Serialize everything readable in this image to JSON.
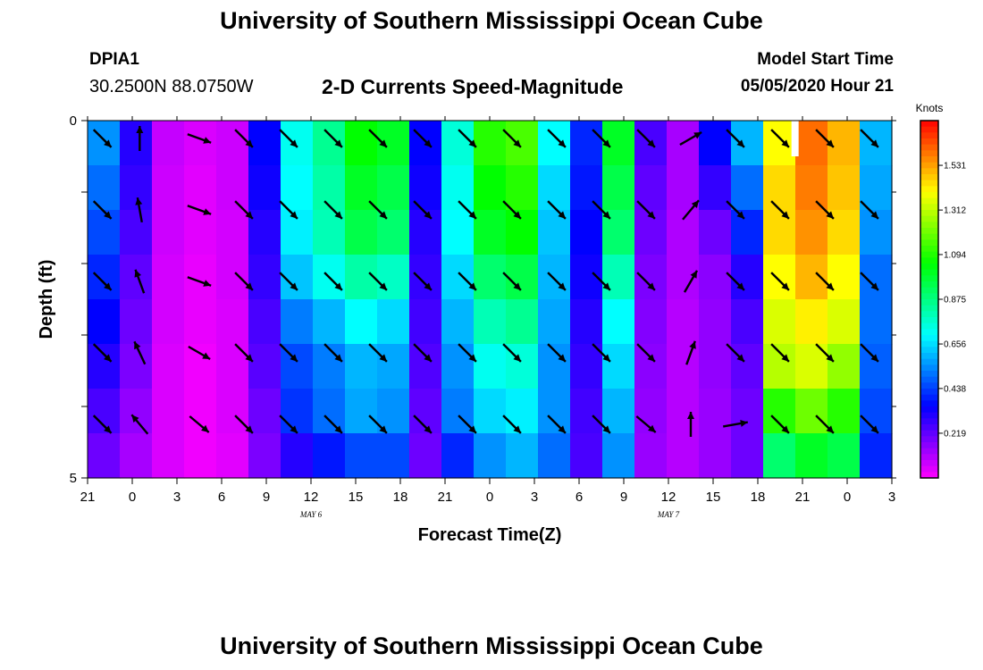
{
  "page": {
    "title_top": "University of Southern Mississippi Ocean Cube",
    "title_bottom": "University of Southern Mississippi Ocean Cube",
    "station_id": "DPIA1",
    "station_coords": "30.2500N 88.0750W",
    "subtitle": "2-D Currents Speed-Magnitude",
    "model_start_label": "Model Start Time",
    "model_start_value": "05/05/2020 Hour 21"
  },
  "chart_data": {
    "type": "heatmap",
    "title": "2-D Currents Speed-Magnitude",
    "xlabel": "Forecast Time(Z)",
    "ylabel": "Depth (ft)",
    "x_ticks": [
      "21",
      "0",
      "3",
      "6",
      "9",
      "12",
      "15",
      "18",
      "21",
      "0",
      "3",
      "6",
      "9",
      "12",
      "15",
      "18",
      "21",
      "0",
      "3"
    ],
    "x_range_hours": [
      0,
      54
    ],
    "date_labels": [
      {
        "text": "MAY 6",
        "hour": 15
      },
      {
        "text": "MAY 7",
        "hour": 39
      }
    ],
    "y_ticks": [
      "0",
      "5"
    ],
    "y_range": [
      0,
      5
    ],
    "colorbar": {
      "label": "Knots",
      "ticks": [
        0.219,
        0.438,
        0.656,
        0.875,
        1.094,
        1.312,
        1.531
      ],
      "tick_labels": [
        "0.219",
        "0.438",
        "0.656",
        "0.875",
        "1.094",
        "1.312",
        "1.531"
      ],
      "range": [
        0,
        1.75
      ]
    },
    "depth_layers": 8,
    "column_speeds": [
      [
        0.55,
        0.5,
        0.45,
        0.4,
        0.35,
        0.3,
        0.25,
        0.2
      ],
      [
        0.3,
        0.28,
        0.25,
        0.22,
        0.2,
        0.18,
        0.15,
        0.12
      ],
      [
        0.08,
        0.07,
        0.07,
        0.06,
        0.06,
        0.05,
        0.05,
        0.05
      ],
      [
        0.05,
        0.04,
        0.04,
        0.03,
        0.03,
        0.02,
        0.02,
        0.02
      ],
      [
        0.07,
        0.07,
        0.06,
        0.06,
        0.05,
        0.05,
        0.05,
        0.04
      ],
      [
        0.35,
        0.33,
        0.3,
        0.28,
        0.25,
        0.23,
        0.2,
        0.18
      ],
      [
        0.72,
        0.7,
        0.68,
        0.62,
        0.52,
        0.45,
        0.42,
        0.3
      ],
      [
        0.85,
        0.82,
        0.8,
        0.72,
        0.6,
        0.52,
        0.5,
        0.38
      ],
      [
        1.05,
        1.0,
        0.95,
        0.82,
        0.7,
        0.6,
        0.58,
        0.45
      ],
      [
        1.0,
        0.95,
        0.9,
        0.78,
        0.65,
        0.58,
        0.55,
        0.45
      ],
      [
        0.35,
        0.33,
        0.3,
        0.28,
        0.26,
        0.24,
        0.22,
        0.2
      ],
      [
        0.75,
        0.72,
        0.7,
        0.65,
        0.6,
        0.55,
        0.52,
        0.4
      ],
      [
        1.1,
        1.05,
        1.0,
        0.9,
        0.8,
        0.72,
        0.65,
        0.55
      ],
      [
        1.15,
        1.1,
        1.05,
        0.95,
        0.85,
        0.75,
        0.68,
        0.6
      ],
      [
        0.7,
        0.65,
        0.62,
        0.6,
        0.58,
        0.55,
        0.55,
        0.5
      ],
      [
        0.4,
        0.38,
        0.35,
        0.33,
        0.3,
        0.28,
        0.26,
        0.25
      ],
      [
        1.0,
        0.95,
        0.9,
        0.8,
        0.7,
        0.65,
        0.6,
        0.55
      ],
      [
        0.25,
        0.22,
        0.2,
        0.18,
        0.17,
        0.16,
        0.15,
        0.14
      ],
      [
        0.12,
        0.12,
        0.11,
        0.11,
        0.1,
        0.1,
        0.1,
        0.1
      ],
      [
        0.35,
        0.28,
        0.2,
        0.16,
        0.15,
        0.15,
        0.14,
        0.14
      ],
      [
        0.6,
        0.5,
        0.4,
        0.3,
        0.25,
        0.22,
        0.2,
        0.2
      ],
      [
        1.4,
        1.45,
        1.45,
        1.4,
        1.35,
        1.3,
        1.1,
        0.9
      ],
      [
        1.6,
        1.58,
        1.55,
        1.5,
        1.42,
        1.35,
        1.2,
        1.0
      ],
      [
        1.5,
        1.48,
        1.45,
        1.4,
        1.35,
        1.25,
        1.1,
        0.95
      ],
      [
        0.6,
        0.58,
        0.55,
        0.5,
        0.5,
        0.48,
        0.45,
        0.4
      ]
    ],
    "arrow_hours": [
      1,
      3.5,
      7.5,
      10.5,
      13.5,
      16.5,
      19.5,
      22.5,
      25.5,
      28.5,
      31.5,
      34.5,
      37.5,
      40.5,
      43.5,
      46.5,
      49.5,
      52.5
    ],
    "arrow_depths": [
      0.25,
      1.25,
      2.25,
      3.25,
      4.25
    ],
    "arrow_directions_deg": [
      [
        135,
        135,
        135,
        135,
        135
      ],
      [
        0,
        -10,
        -20,
        -25,
        -40
      ],
      [
        110,
        110,
        110,
        120,
        130
      ],
      [
        135,
        135,
        135,
        135,
        135
      ],
      [
        135,
        135,
        135,
        135,
        135
      ],
      [
        135,
        135,
        135,
        135,
        135
      ],
      [
        135,
        135,
        135,
        135,
        135
      ],
      [
        135,
        135,
        135,
        135,
        135
      ],
      [
        135,
        135,
        135,
        135,
        135
      ],
      [
        135,
        135,
        135,
        135,
        135
      ],
      [
        135,
        135,
        135,
        135,
        135
      ],
      [
        135,
        135,
        135,
        135,
        135
      ],
      [
        135,
        135,
        135,
        135,
        130
      ],
      [
        60,
        40,
        30,
        20,
        0
      ],
      [
        135,
        135,
        135,
        135,
        80
      ],
      [
        135,
        135,
        135,
        135,
        135
      ],
      [
        135,
        135,
        135,
        135,
        135
      ],
      [
        135,
        135,
        135,
        135,
        135
      ]
    ],
    "gap_marker": {
      "hour": 47.5,
      "depth_range": [
        0,
        0.5
      ]
    }
  }
}
